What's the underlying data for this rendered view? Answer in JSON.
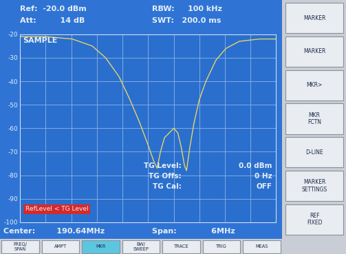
{
  "chart_data": {
    "type": "line",
    "x": [
      187.64,
      188.235,
      188.862,
      189.332,
      189.645,
      189.959,
      190.194,
      190.429,
      190.617,
      190.773,
      190.852,
      190.93,
      191.024,
      191.134,
      191.243,
      191.337,
      191.416,
      191.494,
      191.541,
      191.619,
      191.713,
      191.838,
      191.995,
      192.23,
      192.465,
      192.778,
      193.248,
      193.64
    ],
    "values": [
      -21,
      -21,
      -22,
      -25,
      -30,
      -38,
      -47,
      -57,
      -66,
      -74,
      -77,
      -70,
      -64,
      -62,
      -60,
      -62,
      -68,
      -76,
      -78,
      -68,
      -58,
      -48,
      -40,
      -31,
      -26,
      -23,
      -22,
      -22
    ],
    "color": "#e8d36a",
    "xlim": [
      187.64,
      193.64
    ],
    "xticks": [
      187.64,
      188.24,
      188.84,
      189.44,
      190.04,
      190.64,
      191.24,
      191.84,
      192.44,
      193.04,
      193.64
    ],
    "ylim": [
      -100,
      -20
    ],
    "yticks": [
      -20,
      -30,
      -40,
      -50,
      -60,
      -70,
      -80,
      -90,
      -100
    ],
    "grid": true,
    "tick_labels": "y",
    "annotations": [
      "SAMPLE",
      "TG Level:",
      "0.0 dBm",
      "TG Offs:",
      "0 Hz",
      "TG Cal:",
      "OFF",
      "RefLevel < TG Level"
    ]
  },
  "screen": {
    "header": {
      "left": [
        "Ref:  -20.0 dBm",
        "Att:         14 dB"
      ],
      "right": [
        "RBW:     100 kHz",
        "SWT:   200.0 ms"
      ]
    },
    "footer": {
      "left": "Center:        190.64MHz",
      "right": "Span:             6MHz"
    },
    "softkeys": [
      [
        "MARKER"
      ],
      [
        "MARKER"
      ],
      [
        "MKR>"
      ],
      [
        "MKR",
        "FCTN"
      ],
      [
        "D-LINE"
      ],
      [
        "MARKER",
        "SETTINGS"
      ],
      [
        "REF",
        "FIXED"
      ]
    ],
    "hotkeys": [
      [
        "FREQ/",
        "SPAN"
      ],
      [
        "AMPT"
      ],
      [
        "MKR"
      ],
      [
        "BW/",
        "SWEEP"
      ],
      [
        "TRACE"
      ],
      [
        "TRIG"
      ],
      [
        "MEAS"
      ]
    ],
    "active_hotkey": "MKR"
  }
}
